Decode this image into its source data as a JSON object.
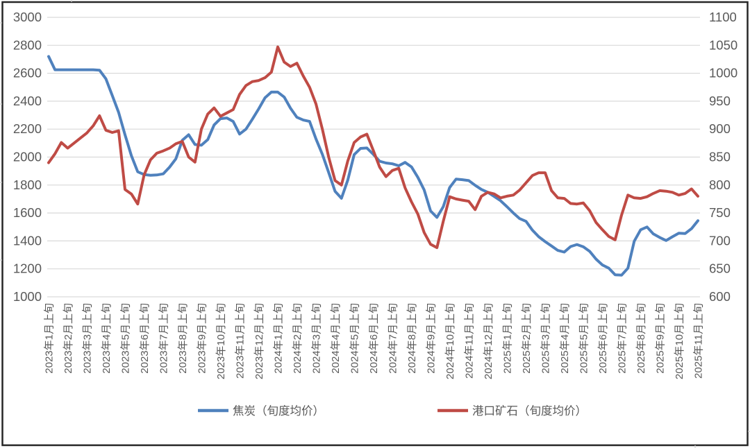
{
  "chart_data": {
    "type": "line",
    "title": "",
    "grid": "horizontal",
    "legend_position": "bottom",
    "points_per_month": 3,
    "x_tick_labels": [
      "2023年1月上旬",
      "2023年2月上旬",
      "2023年3月上旬",
      "2023年4月上旬",
      "2023年5月上旬",
      "2023年6月上旬",
      "2023年7月上旬",
      "2023年8月上旬",
      "2023年9月上旬",
      "2023年10月上旬",
      "2023年11月上旬",
      "2023年12月上旬",
      "2024年1月上旬",
      "2024年2月上旬",
      "2024年3月上旬",
      "2024年4月上旬",
      "2024年5月上旬",
      "2024年6月上旬",
      "2024年7月上旬",
      "2024年8月上旬",
      "2024年9月上旬",
      "2024年10月上旬",
      "2024年11月上旬",
      "2024年12月上旬",
      "2025年1月上旬",
      "2025年2月上旬",
      "2025年3月上旬",
      "2025年4月上旬",
      "2025年5月上旬",
      "2025年6月上旬",
      "2025年7月上旬",
      "2025年8月上旬",
      "2025年9月上旬",
      "2025年10月上旬",
      "2025年11月上旬"
    ],
    "left_axis": {
      "min": 1000,
      "max": 3000,
      "step": 200,
      "tick_labels": [
        "3000",
        "2800",
        "2600",
        "2400",
        "2200",
        "2000",
        "1800",
        "1600",
        "1400",
        "1200",
        "1000"
      ]
    },
    "right_axis": {
      "min": 600,
      "max": 1100,
      "step": 50,
      "tick_labels": [
        "1100",
        "1050",
        "1000",
        "950",
        "900",
        "850",
        "800",
        "750",
        "700",
        "650",
        "600"
      ]
    },
    "series": [
      {
        "name": "焦炭（旬度均价）",
        "axis": "left",
        "color": "#4f81bd",
        "values": [
          2720,
          2625,
          2625,
          2625,
          2625,
          2625,
          2625,
          2625,
          2622,
          2560,
          2440,
          2320,
          2160,
          2010,
          1895,
          1875,
          1870,
          1872,
          1880,
          1928,
          1988,
          2120,
          2160,
          2090,
          2085,
          2125,
          2230,
          2275,
          2280,
          2255,
          2165,
          2200,
          2270,
          2345,
          2425,
          2465,
          2465,
          2430,
          2350,
          2285,
          2265,
          2255,
          2130,
          2020,
          1890,
          1755,
          1705,
          1835,
          2018,
          2062,
          2065,
          2020,
          1970,
          1958,
          1952,
          1938,
          1962,
          1930,
          1855,
          1765,
          1615,
          1568,
          1645,
          1782,
          1842,
          1838,
          1832,
          1798,
          1768,
          1748,
          1718,
          1688,
          1645,
          1600,
          1560,
          1540,
          1477,
          1430,
          1395,
          1364,
          1332,
          1320,
          1360,
          1374,
          1358,
          1325,
          1270,
          1228,
          1205,
          1158,
          1155,
          1205,
          1398,
          1480,
          1500,
          1450,
          1425,
          1403,
          1430,
          1455,
          1453,
          1488,
          1545
        ]
      },
      {
        "name": "港口矿石（旬度均价）",
        "axis": "right",
        "color": "#bf4b45",
        "values": [
          840,
          856,
          876,
          866,
          875,
          884,
          893,
          906,
          924,
          898,
          894,
          897,
          792,
          784,
          766,
          818,
          845,
          857,
          861,
          866,
          874,
          878,
          850,
          841,
          900,
          927,
          938,
          923,
          929,
          935,
          962,
          978,
          985,
          987,
          992,
          1002,
          1047,
          1020,
          1012,
          1018,
          995,
          975,
          945,
          900,
          850,
          808,
          800,
          843,
          876,
          886,
          891,
          862,
          832,
          815,
          826,
          830,
          795,
          770,
          748,
          715,
          694,
          688,
          735,
          779,
          775,
          773,
          771,
          756,
          780,
          787,
          784,
          777,
          780,
          782,
          791,
          804,
          817,
          822,
          822,
          790,
          777,
          776,
          767,
          766,
          768,
          754,
          733,
          720,
          708,
          702,
          746,
          782,
          777,
          776,
          779,
          785,
          790,
          789,
          787,
          782,
          785,
          793,
          780
        ]
      }
    ]
  },
  "legend": {
    "items": [
      {
        "label": "焦炭（旬度均价）",
        "color": "#4f81bd"
      },
      {
        "label": "港口矿石（旬度均价）",
        "color": "#bf4b45"
      }
    ]
  },
  "colors": {
    "frame": "#262626",
    "gridline": "#d9d9d9",
    "tick_text": "#595959",
    "legend_text": "#595959",
    "background": "#ffffff",
    "edge_stub": "#cfcfcf"
  }
}
